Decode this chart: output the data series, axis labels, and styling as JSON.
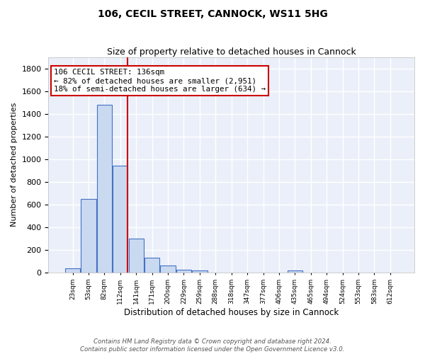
{
  "title": "106, CECIL STREET, CANNOCK, WS11 5HG",
  "subtitle": "Size of property relative to detached houses in Cannock",
  "xlabel": "Distribution of detached houses by size in Cannock",
  "ylabel": "Number of detached properties",
  "bin_labels": [
    "23sqm",
    "53sqm",
    "82sqm",
    "112sqm",
    "141sqm",
    "171sqm",
    "200sqm",
    "229sqm",
    "259sqm",
    "288sqm",
    "318sqm",
    "347sqm",
    "377sqm",
    "406sqm",
    "435sqm",
    "465sqm",
    "494sqm",
    "524sqm",
    "553sqm",
    "583sqm",
    "612sqm"
  ],
  "bar_values": [
    35,
    650,
    1480,
    940,
    300,
    130,
    65,
    22,
    20,
    0,
    0,
    0,
    0,
    0,
    20,
    0,
    0,
    0,
    0,
    0,
    0
  ],
  "bar_color": "#c9d9f0",
  "bar_edge_color": "#4472c4",
  "background_color": "#eaeff9",
  "grid_color": "#ffffff",
  "vline_color": "#cc0000",
  "annotation_text": "106 CECIL STREET: 136sqm\n← 82% of detached houses are smaller (2,951)\n18% of semi-detached houses are larger (634) →",
  "annotation_box_color": "#ffffff",
  "annotation_box_edge": "#cc0000",
  "ylim": [
    0,
    1900
  ],
  "yticks": [
    0,
    200,
    400,
    600,
    800,
    1000,
    1200,
    1400,
    1600,
    1800
  ],
  "footer_line1": "Contains HM Land Registry data © Crown copyright and database right 2024.",
  "footer_line2": "Contains public sector information licensed under the Open Government Licence v3.0."
}
